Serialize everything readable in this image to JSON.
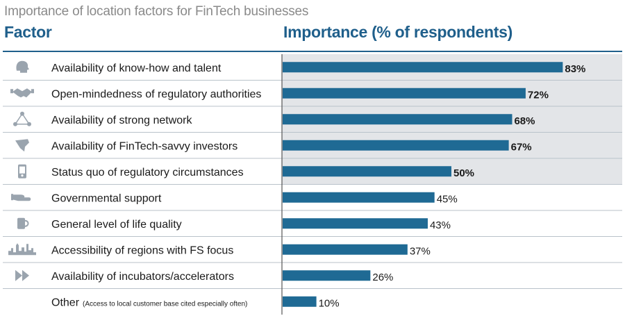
{
  "title": "Importance of location factors for FinTech businesses",
  "header": {
    "factor": "Factor",
    "importance": "Importance (% of respondents)"
  },
  "colors": {
    "bar": "#1f6a94",
    "highlight_bg": "#e3e5e8",
    "header": "#1f5f8b",
    "icon": "#9aa4ae",
    "separator": "#b9c2ca"
  },
  "chart_data": {
    "type": "bar",
    "orientation": "horizontal",
    "title": "Importance of location factors for FinTech businesses",
    "xlabel": "Importance (% of respondents)",
    "ylabel": "Factor",
    "xlim": [
      0,
      100
    ],
    "categories": [
      "Availability of know-how and talent",
      "Open-mindedness of regulatory authorities",
      "Availability of strong network",
      "Availability of FinTech-savvy investors",
      "Status quo of regulatory circumstances",
      "Governmental support",
      "General level of life quality",
      "Accessibility of regions with FS focus",
      "Availability of incubators/accelerators",
      "Other"
    ],
    "notes": [
      "",
      "",
      "",
      "",
      "",
      "",
      "",
      "",
      "",
      "(Access to local customer base cited especially often)"
    ],
    "values": [
      83,
      72,
      68,
      67,
      50,
      45,
      43,
      37,
      26,
      10
    ],
    "value_labels": [
      "83%",
      "72%",
      "68%",
      "67%",
      "50%",
      "45%",
      "43%",
      "37%",
      "26%",
      "10%"
    ],
    "highlighted": [
      true,
      true,
      true,
      true,
      true,
      false,
      false,
      false,
      false,
      false
    ],
    "icons": [
      "head-icon",
      "handshake-icon",
      "network-icon",
      "pen-icon",
      "phone-icon",
      "hand-icon",
      "mug-icon",
      "skyline-icon",
      "fast-forward-icon",
      ""
    ]
  }
}
